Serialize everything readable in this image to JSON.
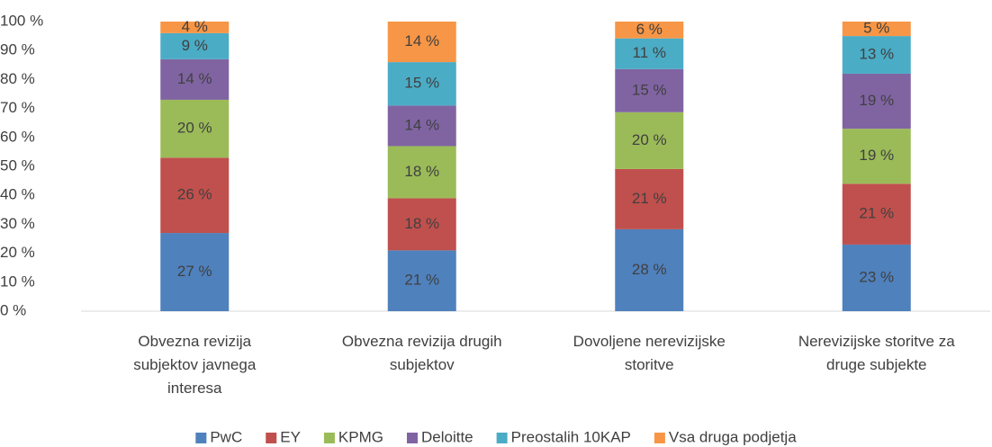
{
  "chart_data": {
    "type": "stacked_bar_100",
    "categories": [
      "Obvezna revizija subjektov javnega interesa",
      "Obvezna revizija drugih subjektov",
      "Dovoljene nerevizijske storitve",
      "Nerevizijske storitve za druge subjekte"
    ],
    "series": [
      {
        "name": "PwC",
        "color": "#4f81bd",
        "values": [
          27,
          21,
          28.3,
          23
        ],
        "value_labels": [
          "27 %",
          "21 %",
          "28 %",
          "23 %"
        ]
      },
      {
        "name": "EY",
        "color": "#c0504d",
        "values": [
          26,
          18,
          20.8,
          21
        ],
        "value_labels": [
          "26 %",
          "18 %",
          "21 %",
          "21 %"
        ]
      },
      {
        "name": "KPMG",
        "color": "#9bbb59",
        "values": [
          20,
          18,
          19.6,
          19
        ],
        "value_labels": [
          "20 %",
          "18 %",
          "20 %",
          "19 %"
        ]
      },
      {
        "name": "Deloitte",
        "color": "#8064a2",
        "values": [
          14,
          14,
          14.9,
          19
        ],
        "value_labels": [
          "14 %",
          "14 %",
          "15 %",
          "19 %"
        ]
      },
      {
        "name": "Preostalih 10KAP",
        "color": "#4bacc6",
        "values": [
          9,
          15,
          10.6,
          13
        ],
        "value_labels": [
          "9 %",
          "15 %",
          "11 %",
          "13 %"
        ]
      },
      {
        "name": "Vsa druga podjetja",
        "color": "#f79646",
        "values": [
          4,
          14,
          5.8,
          5
        ],
        "value_labels": [
          "4 %",
          "14 %",
          "6 %",
          "5 %"
        ]
      }
    ],
    "ylim": [
      0,
      100
    ],
    "yticks": [
      {
        "value": 0,
        "label": "0 %"
      },
      {
        "value": 10,
        "label": "10 %"
      },
      {
        "value": 20,
        "label": "20 %"
      },
      {
        "value": 30,
        "label": "30 %"
      },
      {
        "value": 40,
        "label": "40 %"
      },
      {
        "value": 50,
        "label": "50 %"
      },
      {
        "value": 60,
        "label": "60 %"
      },
      {
        "value": 70,
        "label": "70 %"
      },
      {
        "value": 80,
        "label": "80 %"
      },
      {
        "value": 90,
        "label": "90 %"
      },
      {
        "value": 100,
        "label": "100 %"
      }
    ],
    "legend": "bottom"
  }
}
